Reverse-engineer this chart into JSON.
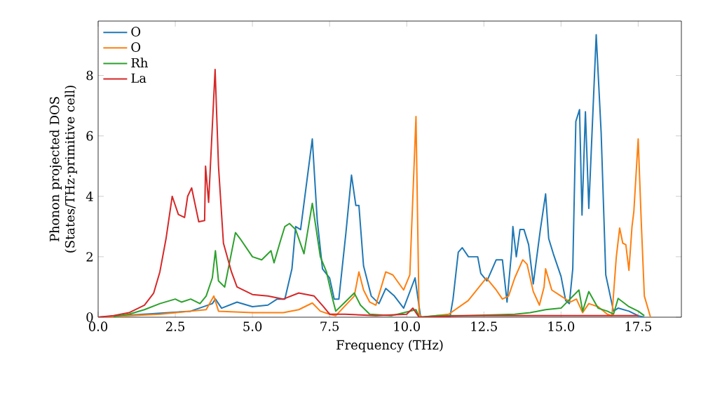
{
  "chart_data": {
    "type": "line",
    "xlabel": "Frequency (THz)",
    "ylabel": "Phonon projected DOS (States/THz·primitive cell)",
    "xlim": [
      0,
      18.9
    ],
    "ylim": [
      0,
      9.8
    ],
    "xticks": [
      {
        "value": 0,
        "label": "0.0"
      },
      {
        "value": 2.5,
        "label": "2.5"
      },
      {
        "value": 5,
        "label": "5.0"
      },
      {
        "value": 7.5,
        "label": "7.5"
      },
      {
        "value": 10,
        "label": "10.0"
      },
      {
        "value": 12.5,
        "label": "12.5"
      },
      {
        "value": 15,
        "label": "15.0"
      },
      {
        "value": 17.5,
        "label": "17.5"
      }
    ],
    "yticks": [
      0,
      2,
      4,
      6,
      8
    ],
    "legend": "top left",
    "grid": false,
    "marker": "none",
    "line_style": "solid",
    "series": [
      {
        "name": "O",
        "color": "#1f77b4",
        "x": [
          0,
          3,
          3.7,
          3.8,
          4.0,
          4.5,
          5.0,
          5.5,
          5.8,
          6.05,
          6.28,
          6.4,
          6.56,
          6.94,
          7.1,
          7.27,
          7.5,
          7.65,
          7.8,
          8.03,
          8.21,
          8.35,
          8.45,
          8.6,
          8.85,
          9.1,
          9.32,
          9.6,
          9.9,
          10.27,
          10.45,
          11.4,
          11.5,
          11.67,
          11.8,
          12.0,
          12.3,
          12.4,
          12.6,
          12.9,
          13.1,
          13.25,
          13.4,
          13.44,
          13.55,
          13.67,
          13.8,
          13.95,
          14.1,
          14.33,
          14.5,
          14.6,
          14.75,
          15.0,
          15.15,
          15.27,
          15.38,
          15.48,
          15.6,
          15.68,
          15.79,
          15.9,
          16.14,
          16.3,
          16.45,
          16.7,
          16.85,
          17.2,
          17.5,
          17.7
        ],
        "values": [
          0,
          0.2,
          0.45,
          0.6,
          0.3,
          0.5,
          0.35,
          0.4,
          0.6,
          0.6,
          1.6,
          3.0,
          2.9,
          5.9,
          3.2,
          1.6,
          1.3,
          0.6,
          0.6,
          2.8,
          4.7,
          3.7,
          3.7,
          1.7,
          0.7,
          0.45,
          0.95,
          0.7,
          0.3,
          1.3,
          0,
          0,
          0.6,
          2.15,
          2.3,
          2.0,
          2.0,
          1.45,
          1.2,
          1.9,
          1.9,
          0.5,
          2.2,
          3.0,
          2.0,
          2.9,
          2.9,
          2.4,
          1.1,
          2.9,
          4.08,
          2.6,
          2.1,
          1.35,
          0.55,
          0.45,
          1.6,
          6.48,
          6.87,
          3.38,
          6.8,
          3.6,
          9.35,
          6.1,
          1.4,
          0.2,
          0.3,
          0.2,
          0.05,
          0
        ]
      },
      {
        "name": "O",
        "color": "#ff7f0e",
        "x": [
          0,
          2,
          3,
          3.5,
          3.75,
          3.9,
          5,
          6,
          6.5,
          6.94,
          7.2,
          7.5,
          7.7,
          8.3,
          8.45,
          8.6,
          8.8,
          9.0,
          9.32,
          9.55,
          9.9,
          10.1,
          10.3,
          10.4,
          10.5,
          11.36,
          11.99,
          12.58,
          12.9,
          13.1,
          13.3,
          13.5,
          13.76,
          13.9,
          14.1,
          14.3,
          14.45,
          14.5,
          14.7,
          15.0,
          15.3,
          15.5,
          15.7,
          15.9,
          16.2,
          16.5,
          16.65,
          16.79,
          16.9,
          17.0,
          17.1,
          17.2,
          17.3,
          17.36,
          17.5,
          17.6,
          17.7,
          17.9
        ],
        "values": [
          0,
          0.1,
          0.2,
          0.25,
          0.7,
          0.2,
          0.15,
          0.15,
          0.25,
          0.47,
          0.2,
          0.1,
          0.05,
          0.7,
          1.5,
          0.9,
          0.5,
          0.4,
          1.5,
          1.4,
          0.9,
          1.4,
          6.64,
          0.1,
          0,
          0.1,
          0.55,
          1.3,
          0.9,
          0.6,
          0.7,
          1.3,
          1.9,
          1.75,
          0.85,
          0.4,
          1.0,
          1.6,
          0.9,
          0.7,
          0.5,
          0.6,
          0.15,
          0.45,
          0.35,
          0.1,
          0.05,
          1.98,
          2.95,
          2.45,
          2.4,
          1.55,
          3.0,
          3.5,
          5.9,
          3.15,
          0.7,
          0
        ]
      },
      {
        "name": "Rh",
        "color": "#2ca02c",
        "x": [
          0.5,
          1.0,
          1.5,
          2.0,
          2.5,
          2.7,
          3.0,
          3.3,
          3.5,
          3.7,
          3.8,
          3.9,
          4.1,
          4.45,
          4.6,
          5.0,
          5.3,
          5.6,
          5.7,
          5.9,
          6.05,
          6.2,
          6.4,
          6.67,
          6.94,
          7.2,
          7.4,
          7.6,
          7.7,
          8.0,
          8.3,
          8.5,
          8.8,
          9.5,
          10.3,
          10.4,
          11,
          12,
          13.5,
          14,
          14.5,
          15,
          15.58,
          15.7,
          15.9,
          16.2,
          16.5,
          16.7,
          16.85,
          17.2,
          17.5,
          17.7
        ],
        "values": [
          0.02,
          0.1,
          0.25,
          0.45,
          0.6,
          0.5,
          0.6,
          0.45,
          0.7,
          1.3,
          2.2,
          1.2,
          1.0,
          2.8,
          2.6,
          2.0,
          1.9,
          2.2,
          1.8,
          2.5,
          3.0,
          3.1,
          2.9,
          2.1,
          3.77,
          2.0,
          1.5,
          0.6,
          0.2,
          0.5,
          0.8,
          0.4,
          0.1,
          0.05,
          0.25,
          0,
          0.05,
          0.05,
          0.1,
          0.15,
          0.25,
          0.3,
          0.9,
          0.2,
          0.85,
          0.3,
          0.2,
          0.1,
          0.62,
          0.35,
          0.2,
          0.05
        ]
      },
      {
        "name": "La",
        "color": "#d62728",
        "x": [
          0,
          0.5,
          1.0,
          1.5,
          1.8,
          2.0,
          2.2,
          2.4,
          2.6,
          2.8,
          2.9,
          3.03,
          3.26,
          3.45,
          3.48,
          3.58,
          3.79,
          3.9,
          4.06,
          4.32,
          4.5,
          5,
          5.5,
          6,
          6.5,
          7,
          7.3,
          7.5,
          8,
          9,
          10,
          10.2,
          10.4,
          12,
          14,
          16,
          17.5
        ],
        "values": [
          0,
          0.05,
          0.15,
          0.4,
          0.8,
          1.5,
          2.6,
          4.0,
          3.4,
          3.3,
          4.0,
          4.28,
          3.16,
          3.2,
          5.0,
          3.8,
          8.2,
          5.0,
          2.45,
          1.5,
          1.0,
          0.75,
          0.7,
          0.6,
          0.8,
          0.7,
          0.35,
          0.1,
          0.1,
          0.05,
          0.1,
          0.3,
          0,
          0.05,
          0.05,
          0.05,
          0.05
        ]
      }
    ]
  }
}
